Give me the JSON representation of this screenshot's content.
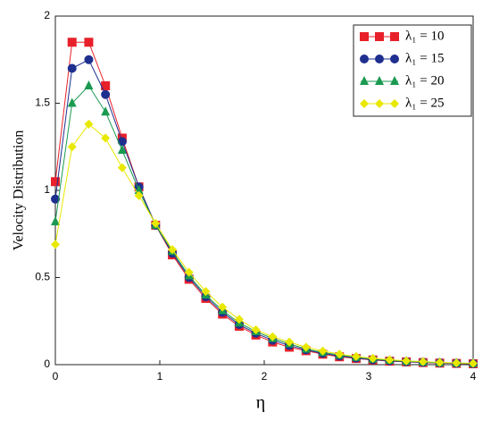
{
  "chart_data": {
    "type": "line",
    "x_label": "η",
    "y_label": "Velocity Distribution",
    "x": [
      0,
      0.16,
      0.32,
      0.48,
      0.64,
      0.8,
      0.96,
      1.12,
      1.28,
      1.44,
      1.6,
      1.76,
      1.92,
      2.08,
      2.24,
      2.4,
      2.56,
      2.72,
      2.88,
      3.04,
      3.2,
      3.36,
      3.52,
      3.68,
      3.84,
      4.0
    ],
    "series": [
      {
        "name": "λ₁ = 10",
        "color": "#e8202a",
        "marker": "square",
        "values": [
          1.05,
          1.85,
          1.85,
          1.6,
          1.3,
          1.02,
          0.8,
          0.63,
          0.49,
          0.38,
          0.29,
          0.22,
          0.17,
          0.13,
          0.1,
          0.08,
          0.06,
          0.045,
          0.035,
          0.027,
          0.02,
          0.016,
          0.012,
          0.009,
          0.007,
          0.005
        ]
      },
      {
        "name": "λ₁ = 15",
        "color": "#1f2f8f",
        "marker": "circle",
        "values": [
          0.95,
          1.7,
          1.75,
          1.55,
          1.28,
          1.02,
          0.8,
          0.64,
          0.5,
          0.39,
          0.3,
          0.23,
          0.18,
          0.14,
          0.11,
          0.085,
          0.065,
          0.05,
          0.038,
          0.029,
          0.022,
          0.017,
          0.013,
          0.01,
          0.008,
          0.006
        ]
      },
      {
        "name": "λ₁ = 20",
        "color": "#1a9a50",
        "marker": "triangle",
        "values": [
          0.82,
          1.5,
          1.6,
          1.45,
          1.23,
          1.0,
          0.8,
          0.65,
          0.51,
          0.4,
          0.31,
          0.24,
          0.19,
          0.15,
          0.12,
          0.09,
          0.07,
          0.055,
          0.042,
          0.032,
          0.025,
          0.019,
          0.015,
          0.011,
          0.009,
          0.007
        ]
      },
      {
        "name": "λ₁ = 25",
        "color": "#e8e800",
        "marker": "diamond",
        "values": [
          0.69,
          1.25,
          1.38,
          1.3,
          1.13,
          0.97,
          0.81,
          0.66,
          0.53,
          0.42,
          0.33,
          0.26,
          0.2,
          0.16,
          0.13,
          0.1,
          0.078,
          0.06,
          0.047,
          0.036,
          0.028,
          0.022,
          0.017,
          0.013,
          0.01,
          0.008
        ]
      }
    ],
    "xlim": [
      0,
      4
    ],
    "xticks": [
      0,
      1,
      2,
      3,
      4
    ],
    "ylim": [
      0,
      2
    ],
    "yticks": [
      0,
      0.5,
      1,
      1.5,
      2
    ],
    "legend": "upper right"
  }
}
